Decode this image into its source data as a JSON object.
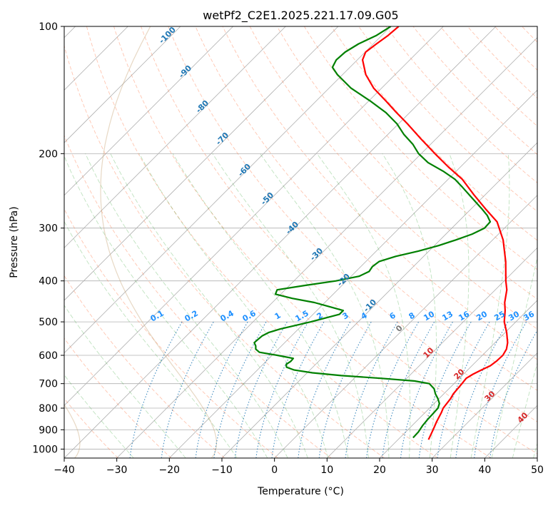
{
  "chart_data": {
    "type": "line",
    "subtype": "skew-t log-p diagram",
    "title": "wetPf2_C2E1.2025.221.17.09.G05",
    "xlabel": "Temperature (°C)",
    "ylabel": "Pressure (hPa)",
    "xlim": [
      -40,
      50
    ],
    "ylim": [
      1050,
      100
    ],
    "y_scale": "log",
    "xticks": [
      "−40",
      "−30",
      "−20",
      "−10",
      "0",
      "10",
      "20",
      "30",
      "40",
      "50"
    ],
    "yticks": [
      "100",
      "200",
      "300",
      "400",
      "500",
      "600",
      "700",
      "800",
      "900",
      "1000"
    ],
    "grid": true,
    "colors": {
      "temperature": "#ff0000",
      "dewpoint": "#008000",
      "dry_adiabats": "#ff7f50",
      "moist_adiabats": "#2ca02c",
      "mixing_ratio": "#1f77b4",
      "isotherms": "#999999",
      "ice_line": "#c9a87c"
    },
    "series": [
      {
        "role": "temperature",
        "points": [
          [
            950,
            25.8
          ],
          [
            900,
            24.8
          ],
          [
            860,
            23.9
          ],
          [
            820,
            23.1
          ],
          [
            800,
            22.6
          ],
          [
            760,
            22.2
          ],
          [
            740,
            21.8
          ],
          [
            700,
            21.5
          ],
          [
            680,
            21.3
          ],
          [
            665,
            21.8
          ],
          [
            650,
            22.6
          ],
          [
            635,
            23.5
          ],
          [
            620,
            23.8
          ],
          [
            600,
            23.9
          ],
          [
            580,
            23.4
          ],
          [
            560,
            22.4
          ],
          [
            530,
            20.3
          ],
          [
            500,
            17.8
          ],
          [
            470,
            15.8
          ],
          [
            450,
            14.2
          ],
          [
            420,
            12.2
          ],
          [
            400,
            10.3
          ],
          [
            360,
            6.6
          ],
          [
            320,
            2.0
          ],
          [
            290,
            -2.6
          ],
          [
            270,
            -7.3
          ],
          [
            250,
            -12.2
          ],
          [
            230,
            -17.3
          ],
          [
            215,
            -22.3
          ],
          [
            200,
            -27.4
          ],
          [
            185,
            -32.7
          ],
          [
            170,
            -38.3
          ],
          [
            160,
            -42.5
          ],
          [
            150,
            -46.8
          ],
          [
            140,
            -51.5
          ],
          [
            130,
            -55.6
          ],
          [
            120,
            -59.0
          ],
          [
            115,
            -59.9
          ],
          [
            110,
            -59.4
          ],
          [
            105,
            -58.8
          ],
          [
            100,
            -58.5
          ]
        ]
      },
      {
        "role": "dewpoint",
        "points": [
          [
            940,
            22.5
          ],
          [
            910,
            22.4
          ],
          [
            880,
            22.0
          ],
          [
            850,
            21.8
          ],
          [
            820,
            21.7
          ],
          [
            800,
            21.6
          ],
          [
            780,
            21.0
          ],
          [
            760,
            19.8
          ],
          [
            740,
            18.4
          ],
          [
            720,
            17.2
          ],
          [
            700,
            15.3
          ],
          [
            690,
            12.0
          ],
          [
            680,
            5.0
          ],
          [
            670,
            -3.0
          ],
          [
            660,
            -9.0
          ],
          [
            650,
            -13.0
          ],
          [
            640,
            -15.0
          ],
          [
            630,
            -15.6
          ],
          [
            620,
            -15.3
          ],
          [
            610,
            -15.4
          ],
          [
            600,
            -19.0
          ],
          [
            590,
            -23.0
          ],
          [
            580,
            -24.3
          ],
          [
            570,
            -24.9
          ],
          [
            560,
            -25.8
          ],
          [
            550,
            -25.7
          ],
          [
            540,
            -25.6
          ],
          [
            530,
            -25.0
          ],
          [
            520,
            -23.5
          ],
          [
            500,
            -19.0
          ],
          [
            480,
            -15.0
          ],
          [
            470,
            -15.0
          ],
          [
            460,
            -18.5
          ],
          [
            450,
            -22.0
          ],
          [
            440,
            -27.0
          ],
          [
            430,
            -31.0
          ],
          [
            420,
            -31.5
          ],
          [
            410,
            -27.0
          ],
          [
            400,
            -22.0
          ],
          [
            390,
            -18.5
          ],
          [
            380,
            -17.5
          ],
          [
            370,
            -17.8
          ],
          [
            360,
            -17.5
          ],
          [
            350,
            -15.3
          ],
          [
            340,
            -12.0
          ],
          [
            330,
            -9.2
          ],
          [
            320,
            -7.0
          ],
          [
            310,
            -5.0
          ],
          [
            300,
            -3.8
          ],
          [
            290,
            -3.9
          ],
          [
            280,
            -5.7
          ],
          [
            270,
            -8.0
          ],
          [
            255,
            -11.8
          ],
          [
            240,
            -15.8
          ],
          [
            230,
            -18.7
          ],
          [
            220,
            -22.5
          ],
          [
            210,
            -27.0
          ],
          [
            200,
            -30.5
          ],
          [
            190,
            -33.4
          ],
          [
            180,
            -37.0
          ],
          [
            170,
            -40.3
          ],
          [
            160,
            -44.5
          ],
          [
            150,
            -49.8
          ],
          [
            140,
            -55.8
          ],
          [
            130,
            -61.0
          ],
          [
            125,
            -63.3
          ],
          [
            120,
            -64.0
          ],
          [
            115,
            -63.8
          ],
          [
            110,
            -62.8
          ],
          [
            105,
            -61.0
          ],
          [
            100,
            -60.0
          ]
        ]
      }
    ],
    "dry_adiabat_thetas_K": [
      230,
      240,
      250,
      260,
      270,
      280,
      290,
      300,
      310,
      320,
      330,
      340,
      350,
      360,
      370,
      380,
      390,
      400,
      410,
      420,
      430,
      440,
      450,
      460,
      470,
      480,
      490
    ],
    "moist_adiabat_labels_C": [
      10,
      20,
      30,
      40
    ],
    "mixing_ratio_labels": [
      "0.1",
      "0.2",
      "0.4",
      "0.6",
      "1",
      "1.5",
      "2",
      "3",
      "4",
      "6",
      "8",
      "10",
      "13",
      "16",
      "20",
      "25",
      "30",
      "36"
    ],
    "isotherm_labels": [
      "-100",
      "-90",
      "-80",
      "-70",
      "-60",
      "-50",
      "-40",
      "-30",
      "-20",
      "-10",
      "0"
    ]
  }
}
